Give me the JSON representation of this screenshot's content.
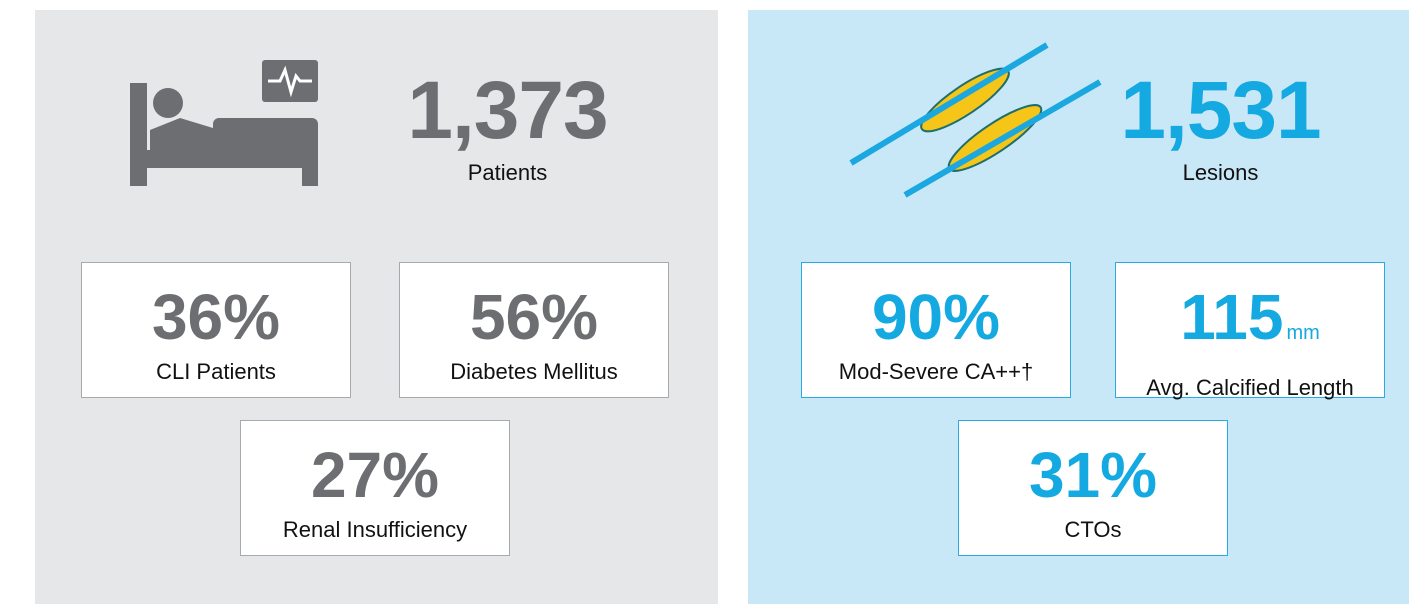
{
  "patients": {
    "headline": {
      "value": "1,373",
      "label": "Patients"
    },
    "stats": [
      {
        "value": "36%",
        "label": "CLI Patients"
      },
      {
        "value": "56%",
        "label": "Diabetes Mellitus"
      },
      {
        "value": "27%",
        "label": "Renal Insufficiency"
      }
    ]
  },
  "lesions": {
    "headline": {
      "value": "1,531",
      "label": "Lesions"
    },
    "stats": [
      {
        "value": "90%",
        "label": "Mod-Severe CA++†"
      },
      {
        "value": "115",
        "unit": "mm",
        "label": "Avg. Calcified Length"
      },
      {
        "value": "31%",
        "label": "CTOs"
      }
    ]
  }
}
